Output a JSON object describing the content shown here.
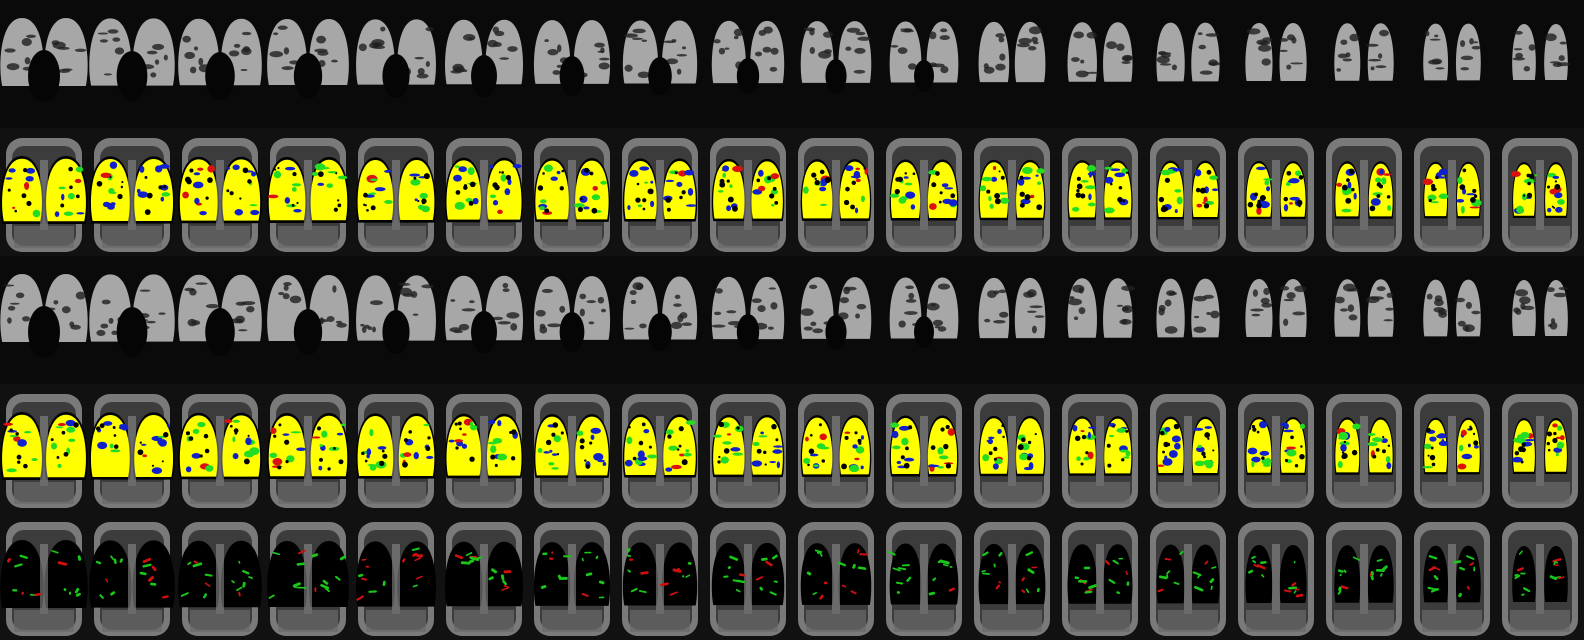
{
  "image": {
    "kind": "MRI lung slice montage",
    "columns": 18,
    "rows": [
      {
        "name": "ventilation-row-1",
        "type": "ventilation"
      },
      {
        "name": "classification-row-1",
        "type": "classification"
      },
      {
        "name": "ventilation-row-2",
        "type": "ventilation"
      },
      {
        "name": "classification-row-2",
        "type": "classification"
      },
      {
        "name": "change-map-row",
        "type": "difference"
      }
    ]
  },
  "colors": {
    "background": "#000000",
    "lung_ventilation": "#b8b8b8",
    "tissue": "#7a7a7a",
    "tissue_dark": "#3c3c3c",
    "class_yellow": "#ffff00",
    "class_green": "#22dd22",
    "class_blue": "#1020cc",
    "class_red": "#dd1010",
    "diff_green": "#19c619",
    "diff_red": "#d01010"
  }
}
